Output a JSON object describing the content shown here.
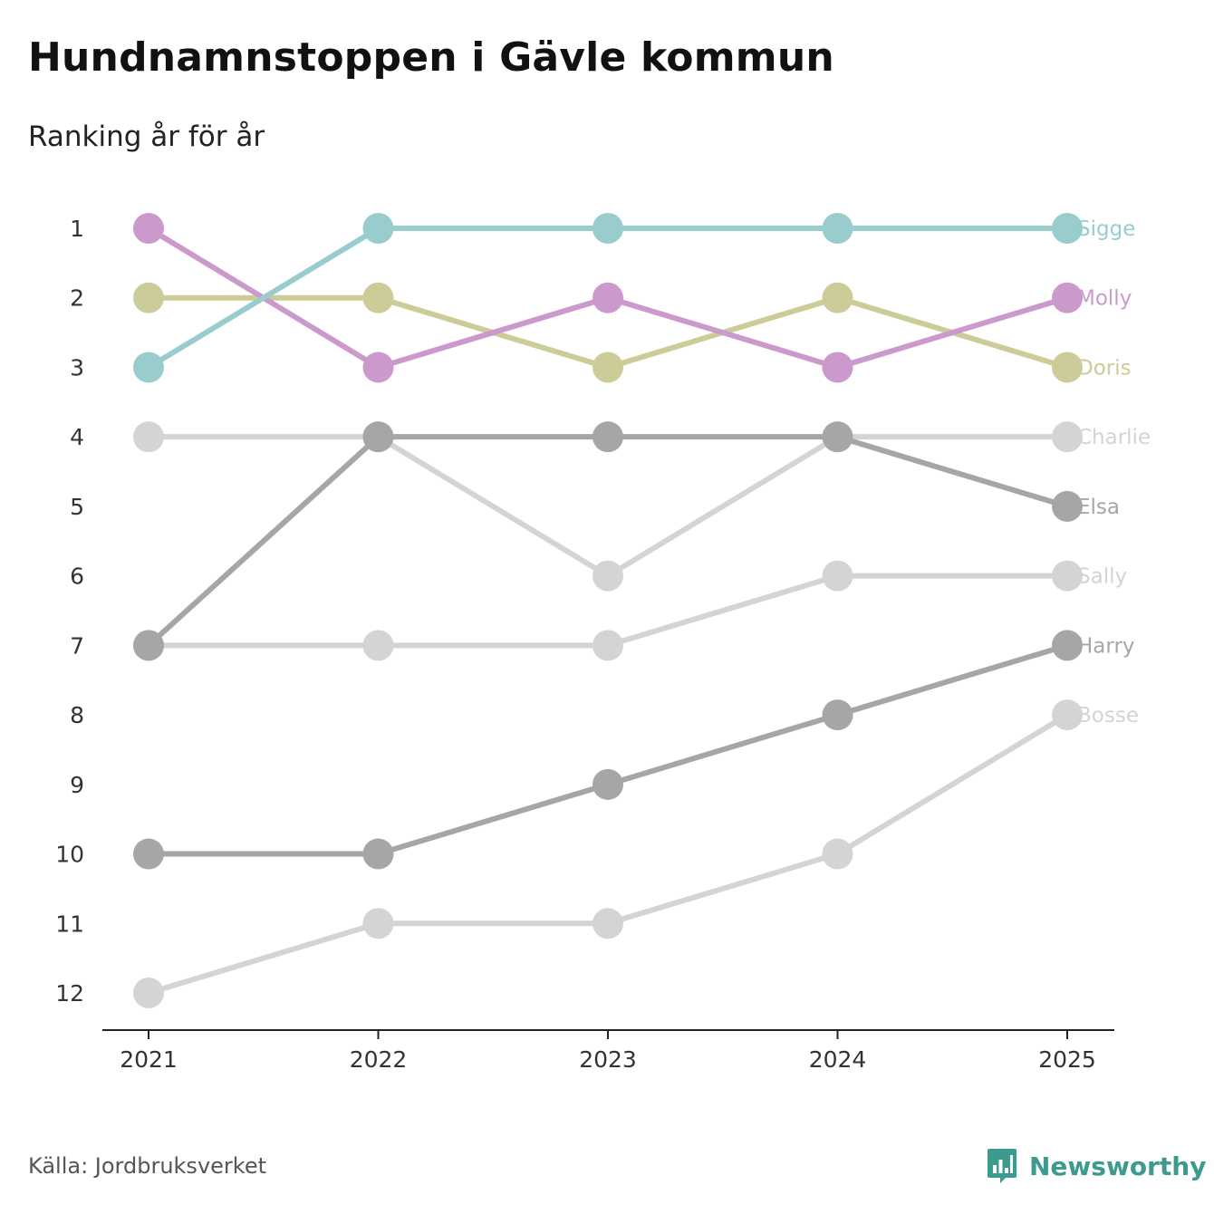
{
  "title": "Hundnamnstoppen i Gävle kommun",
  "subtitle": "Ranking år för år",
  "source": "Källa: Jordbruksverket",
  "brand": {
    "name": "Newsworthy",
    "icon": "bar-chart-logo-icon",
    "color": "#3c9a8f"
  },
  "chart_data": {
    "type": "line",
    "x": [
      "2021",
      "2022",
      "2023",
      "2024",
      "2025"
    ],
    "y_ticks": [
      1,
      2,
      3,
      4,
      5,
      6,
      7,
      8,
      9,
      10,
      11,
      12
    ],
    "ylim": [
      1,
      12
    ],
    "y_reversed": true,
    "grid": false,
    "series": [
      {
        "name": "Bosse",
        "values": [
          12,
          11,
          11,
          10,
          8
        ],
        "color": "#d4d4d4"
      },
      {
        "name": "Charlie",
        "values": [
          4,
          4,
          6,
          4,
          4
        ],
        "color": "#d4d4d4"
      },
      {
        "name": "Sally",
        "values": [
          7,
          7,
          7,
          6,
          6
        ],
        "color": "#d4d4d4"
      },
      {
        "name": "Harry",
        "values": [
          10,
          10,
          9,
          8,
          7
        ],
        "color": "#a6a6a6"
      },
      {
        "name": "Elsa",
        "values": [
          7,
          4,
          4,
          4,
          5
        ],
        "color": "#a6a6a6"
      },
      {
        "name": "Doris",
        "values": [
          2,
          2,
          3,
          2,
          3
        ],
        "color": "#cccc99"
      },
      {
        "name": "Molly",
        "values": [
          1,
          3,
          2,
          3,
          2
        ],
        "color": "#cc99cc"
      },
      {
        "name": "Sigge",
        "values": [
          3,
          1,
          1,
          1,
          1
        ],
        "color": "#99cccc"
      }
    ]
  }
}
